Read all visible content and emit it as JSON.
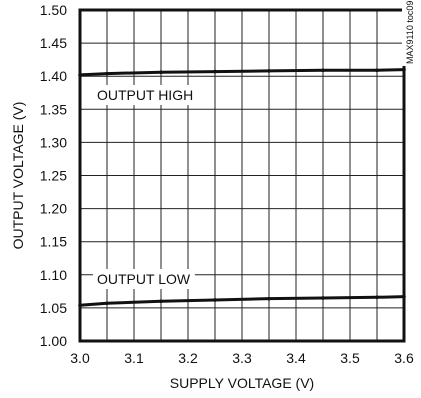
{
  "chart_data": {
    "type": "line",
    "title": "",
    "xlabel": "SUPPLY VOLTAGE (V)",
    "ylabel": "OUTPUT VOLTAGE (V)",
    "xlim": [
      3.0,
      3.6
    ],
    "ylim": [
      1.0,
      1.5
    ],
    "x_ticks": [
      "3.0",
      "3.1",
      "3.2",
      "3.3",
      "3.4",
      "3.5",
      "3.6"
    ],
    "y_ticks": [
      "1.00",
      "1.05",
      "1.10",
      "1.15",
      "1.20",
      "1.25",
      "1.30",
      "1.35",
      "1.40",
      "1.45",
      "1.50"
    ],
    "grid": true,
    "x_grid_step": 0.05,
    "y_grid_step": 0.05,
    "series": [
      {
        "name": "OUTPUT HIGH",
        "x": [
          3.0,
          3.05,
          3.15,
          3.25,
          3.35,
          3.45,
          3.55,
          3.6
        ],
        "y": [
          1.402,
          1.404,
          1.406,
          1.407,
          1.408,
          1.409,
          1.409,
          1.41
        ]
      },
      {
        "name": "OUTPUT LOW",
        "x": [
          3.0,
          3.05,
          3.15,
          3.25,
          3.35,
          3.45,
          3.55,
          3.6
        ],
        "y": [
          1.054,
          1.057,
          1.06,
          1.062,
          1.064,
          1.065,
          1.066,
          1.067
        ]
      }
    ],
    "annotations": {
      "output_high": "OUTPUT HIGH",
      "output_low": "OUTPUT LOW",
      "figure_code": "MAX9110 toc09"
    }
  }
}
